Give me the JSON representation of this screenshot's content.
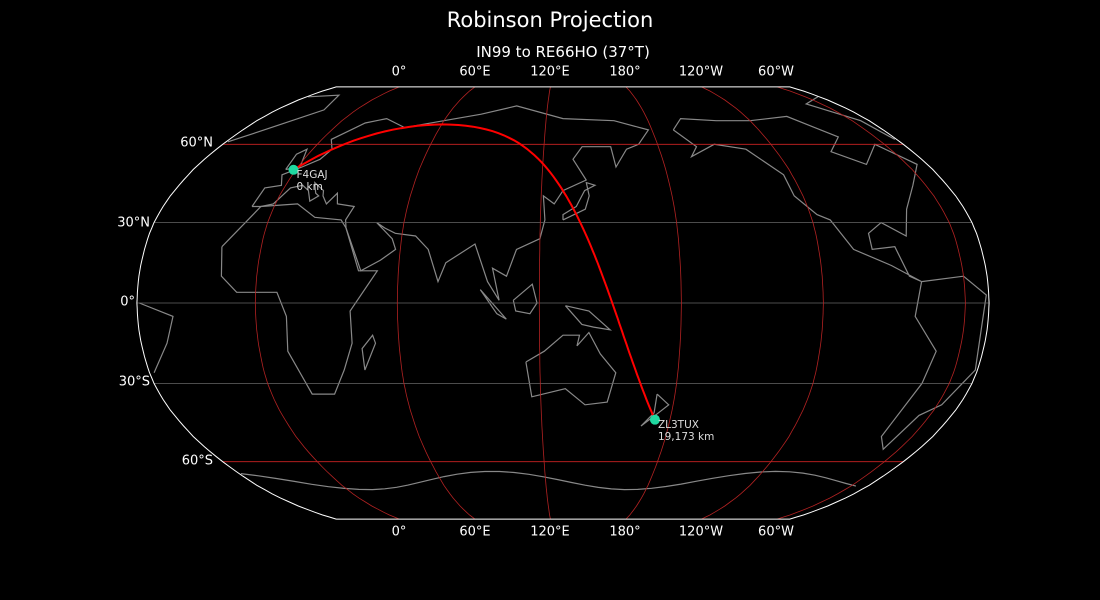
{
  "title": "Robinson Projection",
  "subtitle": "IN99 to RE66HO (37°T)",
  "lon_labels": [
    "0°",
    "60°E",
    "120°E",
    "180°",
    "120°W",
    "60°W"
  ],
  "lat_labels": [
    "60°N",
    "30°N",
    "0°",
    "30°S",
    "60°S"
  ],
  "stations": [
    {
      "call": "F4GAJ",
      "distance": "0 km",
      "lat": 49.9,
      "lon": -1.1
    },
    {
      "call": "ZL3TUX",
      "distance": "19,173 km",
      "lat": -43.6,
      "lon": 173.0
    }
  ],
  "colors": {
    "background": "#000000",
    "coastline": "#888888",
    "meridian": "#b22222",
    "parallel_60": "#cc2222",
    "parallel_minor": "#666666",
    "path": "#ff0000",
    "station": "#1fd8a0",
    "outline": "#ffffff"
  }
}
